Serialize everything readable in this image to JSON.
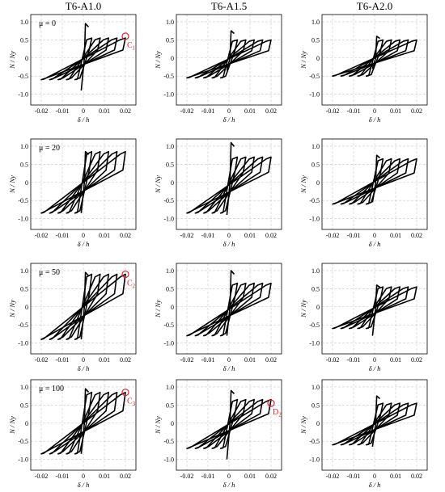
{
  "chart_data": {
    "type": "line",
    "column_titles": [
      "T6-A1.0",
      "T6-A1.5",
      "T6-A2.0"
    ],
    "row_labels": [
      "μ = 0",
      "μ = 20",
      "μ = 50",
      "μ = 100"
    ],
    "xlabel": "δ / h",
    "ylabel": "N / Ny",
    "xlim": [
      -0.025,
      0.025
    ],
    "ylim": [
      -1.3,
      1.2
    ],
    "xticks": [
      -0.02,
      -0.01,
      0,
      0.01,
      0.02
    ],
    "xtick_labels": [
      "-0.02",
      "-0.01",
      "0",
      "0.01",
      "0.02"
    ],
    "yticks": [
      1.0,
      0.5,
      0,
      -0.5,
      -1.0
    ],
    "ytick_labels": [
      "1.0",
      "0.5",
      "0",
      "-0.5",
      "-1.0"
    ],
    "grid": true,
    "panels": [
      {
        "row": 0,
        "col": 0,
        "cycle_peaks": [
          0.004,
          0.008,
          0.012,
          0.016,
          0.02
        ],
        "top": 0.55,
        "bottom": -0.6,
        "spike_up": 0.95,
        "spike_down": -0.9,
        "annotation": "C1",
        "annotation_point": [
          0.02,
          0.6
        ]
      },
      {
        "row": 0,
        "col": 1,
        "cycle_peaks": [
          0.004,
          0.008,
          0.012,
          0.016,
          0.02
        ],
        "top": 0.5,
        "bottom": -0.55,
        "spike_up": 0.75,
        "spike_down": -0.35
      },
      {
        "row": 0,
        "col": 2,
        "cycle_peaks": [
          0.004,
          0.008,
          0.012,
          0.016,
          0.02
        ],
        "top": 0.5,
        "bottom": -0.5,
        "spike_up": 0.6,
        "spike_down": -0.3
      },
      {
        "row": 1,
        "col": 0,
        "cycle_peaks": [
          0.004,
          0.008,
          0.012,
          0.016,
          0.02
        ],
        "top": 0.85,
        "bottom": -0.85,
        "spike_up": 0.85,
        "spike_down": -0.85
      },
      {
        "row": 1,
        "col": 1,
        "cycle_peaks": [
          0.004,
          0.008,
          0.012,
          0.016,
          0.02
        ],
        "top": 0.7,
        "bottom": -0.85,
        "spike_up": 1.1,
        "spike_down": -0.9
      },
      {
        "row": 1,
        "col": 2,
        "cycle_peaks": [
          0.004,
          0.008,
          0.012,
          0.016,
          0.02
        ],
        "top": 0.65,
        "bottom": -0.6,
        "spike_up": 0.75,
        "spike_down": -0.55
      },
      {
        "row": 2,
        "col": 0,
        "cycle_peaks": [
          0.004,
          0.008,
          0.012,
          0.016,
          0.02
        ],
        "top": 0.9,
        "bottom": -0.9,
        "spike_up": 0.95,
        "spike_down": -0.9,
        "annotation": "C2",
        "annotation_point": [
          0.02,
          0.9
        ]
      },
      {
        "row": 2,
        "col": 1,
        "cycle_peaks": [
          0.004,
          0.008,
          0.012,
          0.016,
          0.02
        ],
        "top": 0.65,
        "bottom": -0.8,
        "spike_up": 1.0,
        "spike_down": -0.8
      },
      {
        "row": 2,
        "col": 2,
        "cycle_peaks": [
          0.004,
          0.008,
          0.012,
          0.016,
          0.02
        ],
        "top": 0.55,
        "bottom": -0.6,
        "spike_up": 0.6,
        "spike_down": -0.8
      },
      {
        "row": 3,
        "col": 0,
        "cycle_peaks": [
          0.004,
          0.008,
          0.012,
          0.016,
          0.02
        ],
        "top": 0.85,
        "bottom": -0.85,
        "spike_up": 0.95,
        "spike_down": -0.85,
        "annotation": "C3",
        "annotation_point": [
          0.02,
          0.85
        ]
      },
      {
        "row": 3,
        "col": 1,
        "cycle_peaks": [
          0.004,
          0.008,
          0.012,
          0.016,
          0.02
        ],
        "top": 0.65,
        "bottom": -0.7,
        "spike_up": 0.9,
        "spike_down": -1.0,
        "annotation": "D2",
        "annotation_point": [
          0.02,
          0.55
        ]
      },
      {
        "row": 3,
        "col": 2,
        "cycle_peaks": [
          0.004,
          0.008,
          0.012,
          0.016,
          0.02
        ],
        "top": 0.55,
        "bottom": -0.6,
        "spike_up": 0.75,
        "spike_down": -0.65
      }
    ]
  },
  "colors": {
    "curve": "#000000",
    "grid": "#c8c8c8",
    "annotation": "#e0202c"
  }
}
